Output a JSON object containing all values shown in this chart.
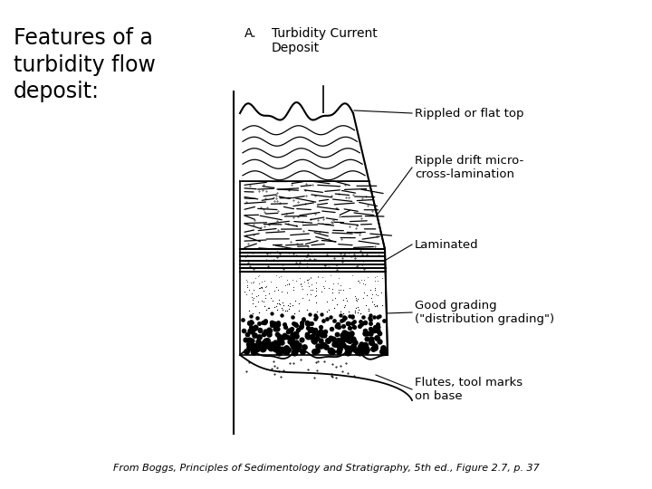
{
  "background_color": "#ffffff",
  "title_text": "Features of a\nturbidity flow\ndeposit:",
  "title_fontsize": 17,
  "subtitle_A": "A.",
  "subtitle_label": "Turbidity Current\nDeposit",
  "caption": "From Boggs, Principles of Sedimentology and Stratigraphy, 5th ed., Figure 2.7, p. 37",
  "label_rippled": "Rippled or flat top",
  "label_ripple_drift": "Ripple drift micro-\ncross-lamination",
  "label_laminated": "Laminated",
  "label_grading": "Good grading\n(\"distribution grading\")",
  "label_flutes": "Flutes, tool marks\non base"
}
